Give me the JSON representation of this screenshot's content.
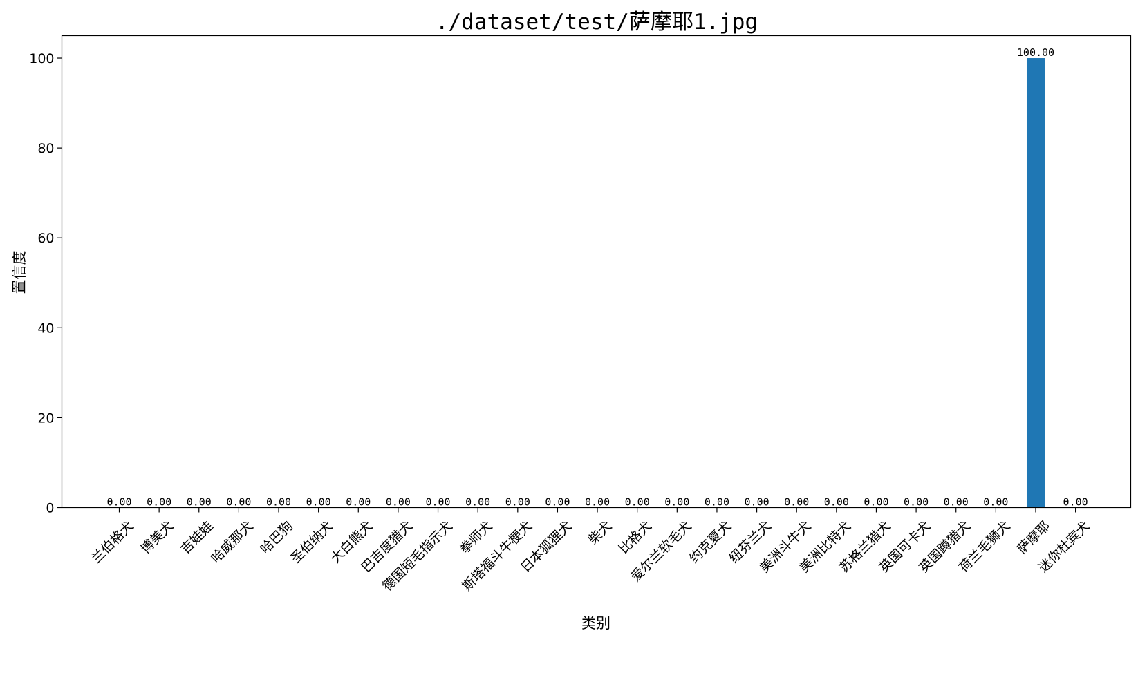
{
  "chart_data": {
    "type": "bar",
    "title": "./dataset/test/萨摩耶1.jpg",
    "xlabel": "类别",
    "ylabel": "置信度",
    "ylim": [
      0,
      105
    ],
    "yticks": [
      0,
      20,
      40,
      60,
      80,
      100
    ],
    "grid": false,
    "bar_color": "#1f77b4",
    "categories": [
      "兰伯格犬",
      "博美犬",
      "吉娃娃",
      "哈威那犬",
      "哈巴狗",
      "圣伯纳犬",
      "大白熊犬",
      "巴吉度猎犬",
      "德国短毛指示犬",
      "拳师犬",
      "斯塔福斗牛梗犬",
      "日本狐狸犬",
      "柴犬",
      "比格犬",
      "爱尔兰软毛犬",
      "约克夏犬",
      "纽芬兰犬",
      "美洲斗牛犬",
      "美洲比特犬",
      "苏格兰猎犬",
      "英国可卡犬",
      "英国蹲猎犬",
      "荷兰毛狮犬",
      "萨摩耶",
      "迷你杜宾犬"
    ],
    "values": [
      0,
      0,
      0,
      0,
      0,
      0,
      0,
      0,
      0,
      0,
      0,
      0,
      0,
      0,
      0,
      0,
      0,
      0,
      0,
      0,
      0,
      0,
      0,
      100,
      0
    ],
    "data_labels": [
      "0.00",
      "0.00",
      "0.00",
      "0.00",
      "0.00",
      "0.00",
      "0.00",
      "0.00",
      "0.00",
      "0.00",
      "0.00",
      "0.00",
      "0.00",
      "0.00",
      "0.00",
      "0.00",
      "0.00",
      "0.00",
      "0.00",
      "0.00",
      "0.00",
      "0.00",
      "0.00",
      "100.00",
      "0.00"
    ]
  }
}
